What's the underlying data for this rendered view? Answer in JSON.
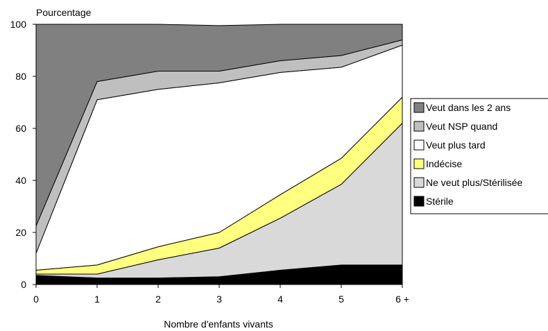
{
  "chart_data": {
    "type": "area",
    "stacked": true,
    "title": "",
    "ylabel": "Pourcentage",
    "xlabel": "Nombre d'enfants vivants",
    "categories": [
      "0",
      "1",
      "2",
      "3",
      "4",
      "5",
      "6 +"
    ],
    "ylim": [
      0,
      100
    ],
    "yticks": [
      0,
      20,
      40,
      60,
      80,
      100
    ],
    "grid": false,
    "legend_position": "right",
    "series": [
      {
        "name": "Stérile",
        "color": "#000000",
        "values": [
          3.5,
          2.5,
          2.5,
          3,
          5.5,
          7.5,
          7.5
        ]
      },
      {
        "name": "Ne veut plus/Stérilisée",
        "color": "#d9d9d9",
        "values": [
          0.5,
          1.5,
          7,
          11,
          20,
          31,
          54.5
        ]
      },
      {
        "name": "Indécise",
        "color": "#ffff80",
        "values": [
          1.5,
          3.5,
          5,
          6,
          9,
          10,
          10
        ]
      },
      {
        "name": "Veut plus tard",
        "color": "#ffffff",
        "values": [
          6.5,
          63.5,
          60.5,
          57.5,
          47,
          35,
          20
        ]
      },
      {
        "name": "Veut NSP quand",
        "color": "#bfbfbf",
        "values": [
          10.5,
          7,
          7,
          4.5,
          4.5,
          4.5,
          2
        ]
      },
      {
        "name": "Veut dans les 2 ans",
        "color": "#808080",
        "values": [
          77.5,
          22,
          18,
          17.5,
          14,
          12,
          6
        ]
      }
    ]
  }
}
